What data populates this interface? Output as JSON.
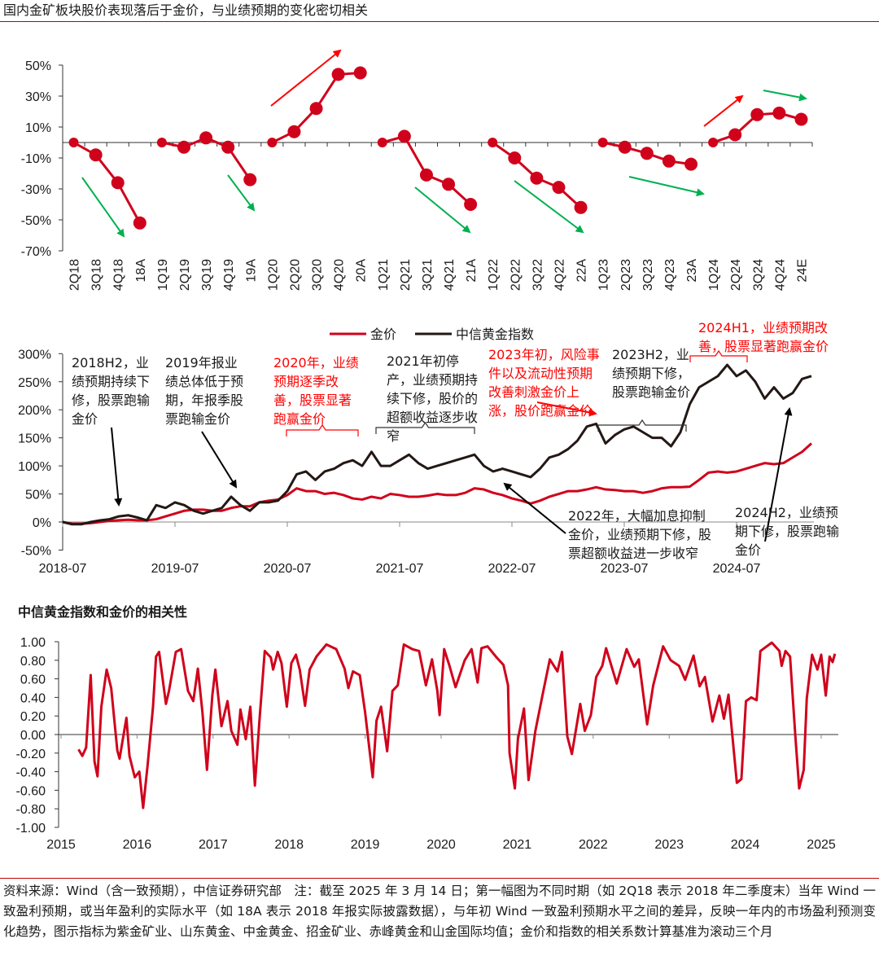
{
  "title": "国内金矿板块股价表现落后于金价，与业绩预期的变化密切相关",
  "colors": {
    "gold_price": "#d0021b",
    "index": "#231815",
    "up_arrow": "#ff0000",
    "down_arrow": "#00b050",
    "rule": "#c00000"
  },
  "chart_data": [
    {
      "type": "line",
      "ylim": [
        -70,
        50
      ],
      "yticks": [
        "50%",
        "30%",
        "10%",
        "-10%",
        "-30%",
        "-50%",
        "-70%"
      ],
      "ytick_values": [
        50,
        30,
        10,
        -10,
        -30,
        -50,
        -70
      ],
      "unit": "%",
      "groups": [
        {
          "categories": [
            "2Q18",
            "3Q18",
            "4Q18",
            "18A"
          ],
          "values": [
            0,
            -8,
            -26,
            -52
          ],
          "trend": "down"
        },
        {
          "categories": [
            "1Q19",
            "2Q19",
            "3Q19",
            "4Q19",
            "19A"
          ],
          "values": [
            0,
            -3,
            3,
            -3,
            -24
          ],
          "trend": "down"
        },
        {
          "categories": [
            "1Q20",
            "2Q20",
            "3Q20",
            "4Q20",
            "20A"
          ],
          "values": [
            0,
            7,
            22,
            44,
            45
          ],
          "trend": "up"
        },
        {
          "categories": [
            "1Q21",
            "2Q21",
            "3Q21",
            "4Q21",
            "21A"
          ],
          "values": [
            0,
            4,
            -21,
            -27,
            -40
          ],
          "trend": "down"
        },
        {
          "categories": [
            "1Q22",
            "2Q22",
            "3Q22",
            "4Q22",
            "22A"
          ],
          "values": [
            0,
            -10,
            -23,
            -29,
            -42
          ],
          "trend": "down"
        },
        {
          "categories": [
            "1Q23",
            "2Q23",
            "3Q23",
            "4Q23",
            "23A"
          ],
          "values": [
            0,
            -3,
            -7,
            -12,
            -14
          ],
          "trend": "down"
        },
        {
          "categories": [
            "1Q24",
            "2Q24",
            "3Q24",
            "4Q24",
            "24E"
          ],
          "values": [
            0,
            5,
            18,
            19,
            15
          ],
          "trend": "up-then-flat"
        }
      ]
    },
    {
      "type": "line",
      "ylim": [
        -50,
        300
      ],
      "yticks": [
        "300%",
        "250%",
        "200%",
        "150%",
        "100%",
        "50%",
        "0%",
        "-50%"
      ],
      "ytick_values": [
        300,
        250,
        200,
        150,
        100,
        50,
        0,
        -50
      ],
      "xticks": [
        "2018-07",
        "2019-07",
        "2020-07",
        "2021-07",
        "2022-07",
        "2023-07",
        "2024-07"
      ],
      "x_start": "2018-07",
      "x_frequency": "monthly",
      "legend_position": "top",
      "series": [
        {
          "name": "金价",
          "values": [
            0,
            -3,
            -3,
            -2,
            0,
            2,
            3,
            4,
            3,
            3,
            5,
            10,
            15,
            20,
            22,
            22,
            20,
            20,
            25,
            28,
            28,
            35,
            38,
            40,
            48,
            60,
            55,
            55,
            50,
            52,
            48,
            42,
            40,
            45,
            42,
            50,
            48,
            45,
            45,
            47,
            50,
            48,
            48,
            52,
            60,
            58,
            52,
            48,
            42,
            38,
            33,
            38,
            45,
            50,
            55,
            55,
            58,
            62,
            58,
            57,
            55,
            55,
            52,
            55,
            60,
            62,
            62,
            63,
            75,
            88,
            90,
            88,
            90,
            95,
            100,
            105,
            103,
            105,
            115,
            125,
            140
          ]
        },
        {
          "name": "中信黄金指数",
          "values": [
            0,
            -4,
            -4,
            0,
            3,
            5,
            10,
            12,
            8,
            3,
            30,
            25,
            35,
            30,
            20,
            15,
            20,
            25,
            45,
            30,
            20,
            35,
            35,
            38,
            55,
            85,
            90,
            75,
            90,
            95,
            105,
            110,
            100,
            125,
            100,
            100,
            110,
            120,
            105,
            95,
            100,
            105,
            110,
            115,
            120,
            100,
            90,
            95,
            90,
            85,
            80,
            95,
            115,
            120,
            130,
            145,
            170,
            175,
            140,
            155,
            165,
            170,
            160,
            150,
            150,
            135,
            160,
            210,
            240,
            250,
            260,
            280,
            260,
            270,
            250,
            220,
            240,
            220,
            230,
            255,
            260
          ]
        }
      ],
      "annotations": [
        {
          "color": "black",
          "lines": [
            "2018H2，业",
            "绩预期持续下",
            "修，股票跑输",
            "金价"
          ]
        },
        {
          "color": "black",
          "lines": [
            "2019年报业",
            "绩总体低于预",
            "期，年报季股",
            "票跑输金价"
          ]
        },
        {
          "color": "red",
          "lines": [
            "2020年，业绩",
            "预期逐季改",
            "善，股票显著",
            "跑赢金价"
          ]
        },
        {
          "color": "black",
          "lines": [
            "2021年初停",
            "产，业绩预期持",
            "续下修，股价的",
            "超额收益逐步收",
            "窄"
          ]
        },
        {
          "color": "red",
          "lines": [
            "2023年初，风险事",
            "件以及流动性预期",
            "改善刺激金价上",
            "涨，股价跑赢金价"
          ]
        },
        {
          "color": "black",
          "lines": [
            "2023H2，业",
            "绩预期下修，",
            "股票跑输金价"
          ]
        },
        {
          "color": "red",
          "lines": [
            "2024H1，业绩预期改",
            "善，股票显著跑赢金价"
          ]
        },
        {
          "color": "black",
          "lines": [
            "2022年，大幅加息抑制",
            "金价，业绩预期下修，股",
            "票超额收益进一步收窄"
          ]
        },
        {
          "color": "black",
          "lines": [
            "2024H2，业绩预",
            "期下修，股票跑输",
            "金价"
          ]
        }
      ]
    },
    {
      "type": "line",
      "title": "中信黄金指数和金价的相关性",
      "ylim": [
        -1,
        1
      ],
      "yticks": [
        "1.00",
        "0.80",
        "0.60",
        "0.40",
        "0.20",
        "0.00",
        "-0.20",
        "-0.40",
        "-0.60",
        "-0.80",
        "-1.00"
      ],
      "ytick_values": [
        1,
        0.8,
        0.6,
        0.4,
        0.2,
        0,
        -0.2,
        -0.4,
        -0.6,
        -0.8,
        -1
      ],
      "xticks": [
        "2015",
        "2016",
        "2017",
        "2018",
        "2019",
        "2020",
        "2021",
        "2022",
        "2023",
        "2024",
        "2025"
      ],
      "xlim": [
        2015,
        2025.2
      ],
      "series": [
        {
          "points": [
            [
              2015.23,
              -0.16
            ],
            [
              2015.28,
              -0.23
            ],
            [
              2015.33,
              -0.14
            ],
            [
              2015.39,
              0.64
            ],
            [
              2015.44,
              -0.29
            ],
            [
              2015.48,
              -0.45
            ],
            [
              2015.53,
              0.3
            ],
            [
              2015.6,
              0.7
            ],
            [
              2015.66,
              0.5
            ],
            [
              2015.74,
              -0.17
            ],
            [
              2015.77,
              -0.26
            ],
            [
              2015.86,
              0.18
            ],
            [
              2015.9,
              -0.23
            ],
            [
              2015.97,
              -0.46
            ],
            [
              2016.03,
              -0.4
            ],
            [
              2016.08,
              -0.79
            ],
            [
              2016.14,
              -0.32
            ],
            [
              2016.21,
              0.3
            ],
            [
              2016.25,
              0.84
            ],
            [
              2016.29,
              0.89
            ],
            [
              2016.38,
              0.33
            ],
            [
              2016.42,
              0.47
            ],
            [
              2016.51,
              0.89
            ],
            [
              2016.58,
              0.92
            ],
            [
              2016.67,
              0.47
            ],
            [
              2016.74,
              0.36
            ],
            [
              2016.8,
              0.71
            ],
            [
              2016.86,
              0.24
            ],
            [
              2016.92,
              -0.38
            ],
            [
              2016.99,
              0.42
            ],
            [
              2017.03,
              0.7
            ],
            [
              2017.11,
              0.09
            ],
            [
              2017.19,
              0.36
            ],
            [
              2017.24,
              0.04
            ],
            [
              2017.32,
              -0.11
            ],
            [
              2017.36,
              0.27
            ],
            [
              2017.43,
              -0.05
            ],
            [
              2017.49,
              0.3
            ],
            [
              2017.55,
              -0.55
            ],
            [
              2017.61,
              0.15
            ],
            [
              2017.68,
              0.9
            ],
            [
              2017.76,
              0.83
            ],
            [
              2017.79,
              0.7
            ],
            [
              2017.85,
              0.89
            ],
            [
              2017.9,
              0.77
            ],
            [
              2017.97,
              0.3
            ],
            [
              2018.03,
              0.77
            ],
            [
              2018.09,
              0.86
            ],
            [
              2018.14,
              0.7
            ],
            [
              2018.21,
              0.31
            ],
            [
              2018.27,
              0.7
            ],
            [
              2018.36,
              0.84
            ],
            [
              2018.49,
              0.97
            ],
            [
              2018.62,
              0.92
            ],
            [
              2018.73,
              0.71
            ],
            [
              2018.78,
              0.5
            ],
            [
              2018.84,
              0.68
            ],
            [
              2018.93,
              0.64
            ],
            [
              2019.0,
              0.24
            ],
            [
              2019.1,
              -0.46
            ],
            [
              2019.15,
              0.15
            ],
            [
              2019.21,
              0.3
            ],
            [
              2019.29,
              -0.18
            ],
            [
              2019.36,
              0.47
            ],
            [
              2019.43,
              0.53
            ],
            [
              2019.51,
              0.97
            ],
            [
              2019.62,
              0.92
            ],
            [
              2019.71,
              0.9
            ],
            [
              2019.8,
              0.53
            ],
            [
              2019.88,
              0.81
            ],
            [
              2019.95,
              0.47
            ],
            [
              2019.98,
              0.21
            ],
            [
              2020.04,
              0.92
            ],
            [
              2020.11,
              0.74
            ],
            [
              2020.19,
              0.51
            ],
            [
              2020.31,
              0.8
            ],
            [
              2020.4,
              0.92
            ],
            [
              2020.48,
              0.56
            ],
            [
              2020.53,
              0.93
            ],
            [
              2020.61,
              0.95
            ],
            [
              2020.73,
              0.83
            ],
            [
              2020.82,
              0.75
            ],
            [
              2020.88,
              0.53
            ],
            [
              2020.9,
              -0.2
            ],
            [
              2020.97,
              -0.58
            ],
            [
              2021.01,
              -0.05
            ],
            [
              2021.09,
              0.28
            ],
            [
              2021.15,
              -0.49
            ],
            [
              2021.24,
              0.04
            ],
            [
              2021.34,
              0.45
            ],
            [
              2021.43,
              0.81
            ],
            [
              2021.53,
              0.68
            ],
            [
              2021.59,
              0.89
            ],
            [
              2021.66,
              -0.02
            ],
            [
              2021.72,
              -0.21
            ],
            [
              2021.83,
              0.33
            ],
            [
              2021.89,
              0.04
            ],
            [
              2021.97,
              0.21
            ],
            [
              2022.04,
              0.62
            ],
            [
              2022.12,
              0.74
            ],
            [
              2022.17,
              0.93
            ],
            [
              2022.31,
              0.55
            ],
            [
              2022.44,
              0.92
            ],
            [
              2022.54,
              0.73
            ],
            [
              2022.6,
              0.81
            ],
            [
              2022.71,
              0.11
            ],
            [
              2022.79,
              0.53
            ],
            [
              2022.92,
              0.95
            ],
            [
              2023.02,
              0.8
            ],
            [
              2023.13,
              0.74
            ],
            [
              2023.21,
              0.59
            ],
            [
              2023.32,
              0.85
            ],
            [
              2023.4,
              0.52
            ],
            [
              2023.47,
              0.62
            ],
            [
              2023.57,
              0.14
            ],
            [
              2023.66,
              0.42
            ],
            [
              2023.72,
              0.17
            ],
            [
              2023.78,
              0.43
            ],
            [
              2023.89,
              -0.52
            ],
            [
              2023.95,
              -0.48
            ],
            [
              2024.01,
              0.36
            ],
            [
              2024.08,
              0.4
            ],
            [
              2024.15,
              0.37
            ],
            [
              2024.2,
              0.9
            ],
            [
              2024.35,
              0.99
            ],
            [
              2024.45,
              0.9
            ],
            [
              2024.48,
              0.74
            ],
            [
              2024.53,
              0.9
            ],
            [
              2024.59,
              0.84
            ],
            [
              2024.66,
              -0.02
            ],
            [
              2024.71,
              -0.58
            ],
            [
              2024.77,
              -0.38
            ],
            [
              2024.81,
              0.39
            ],
            [
              2024.88,
              0.86
            ],
            [
              2024.95,
              0.7
            ],
            [
              2025.0,
              0.86
            ],
            [
              2025.06,
              0.42
            ],
            [
              2025.11,
              0.84
            ],
            [
              2025.15,
              0.78
            ],
            [
              2025.18,
              0.87
            ]
          ]
        }
      ]
    }
  ],
  "footer": "资料来源：Wind（含一致预期），中信证券研究部　注：截至 2025 年 3 月 14 日；第一幅图为不同时期（如 2Q18 表示 2018 年二季度末）当年 Wind 一致盈利预期，或当年盈利的实际水平（如 18A 表示 2018 年报实际披露数据），与年初 Wind 一致盈利预期水平之间的差异，反映一年内的市场盈利预测变化趋势，图示指标为紫金矿业、山东黄金、中金黄金、招金矿业、赤峰黄金和山金国际均值；金价和指数的相关系数计算基准为滚动三个月"
}
